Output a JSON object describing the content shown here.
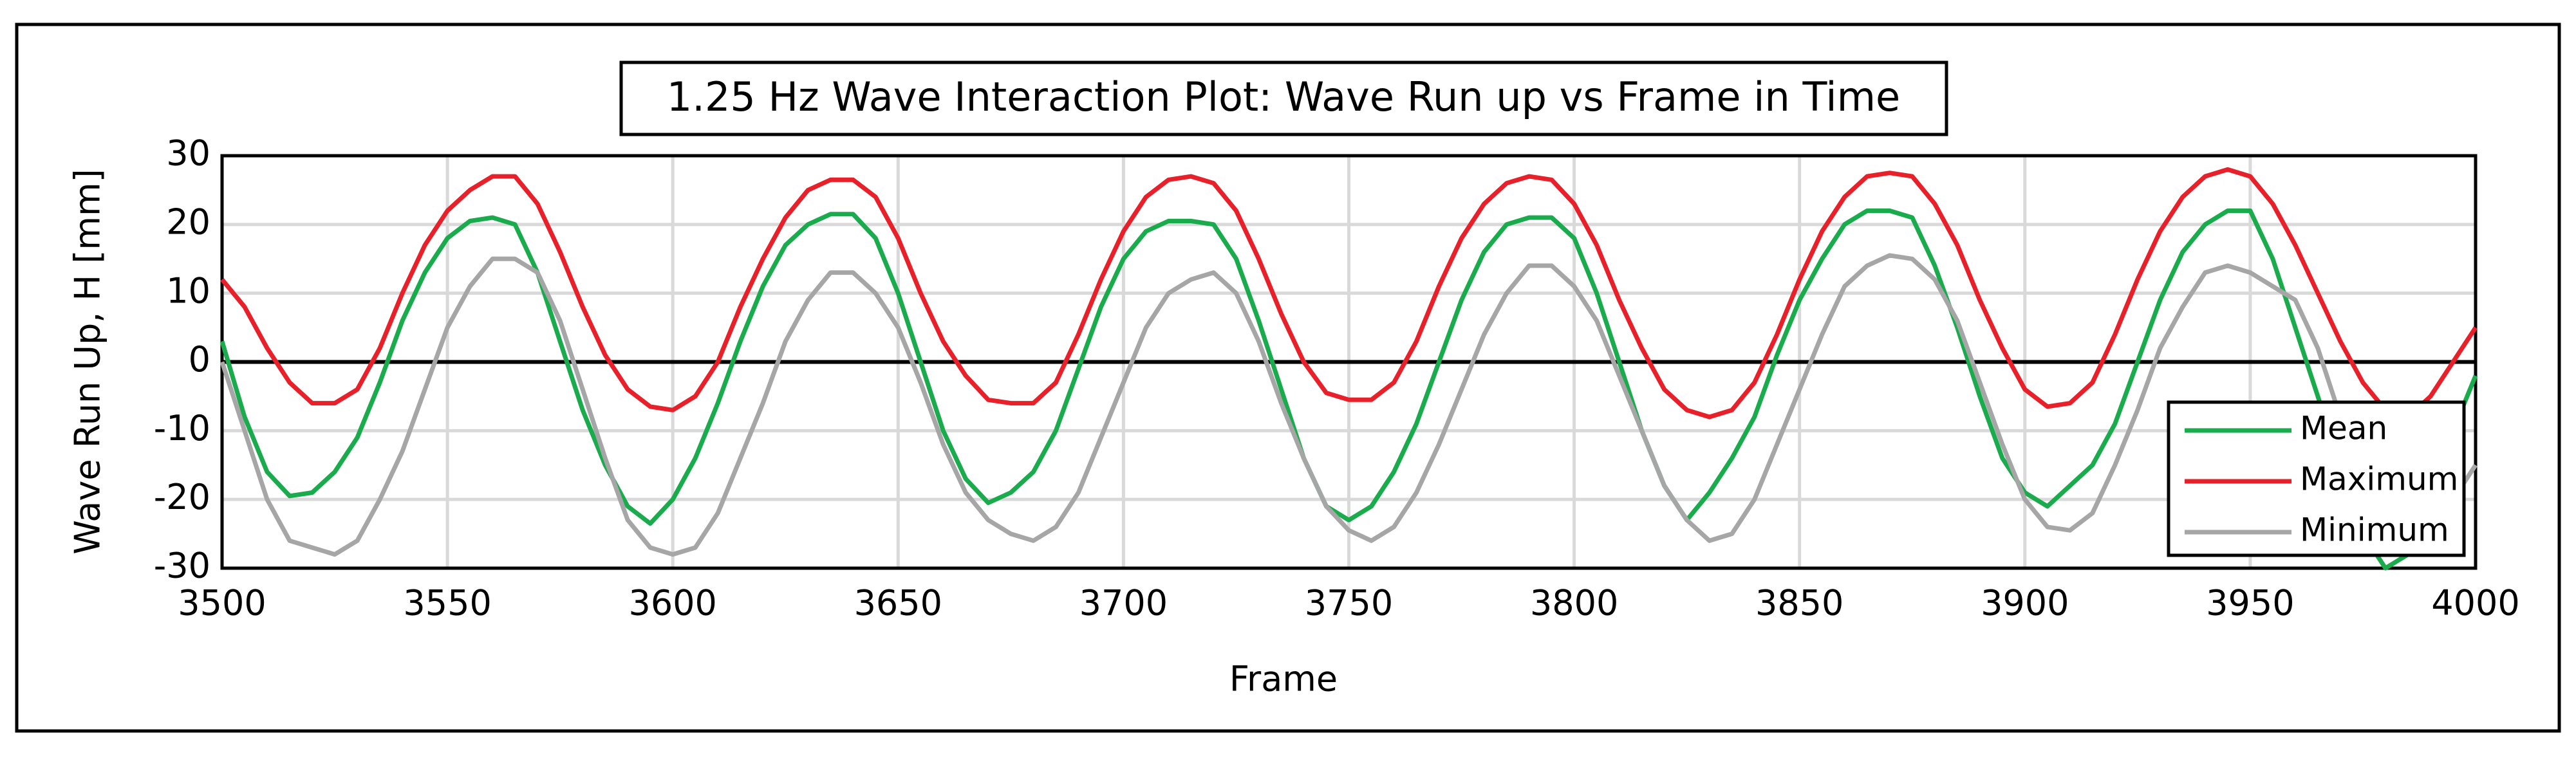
{
  "chart_data": {
    "type": "line",
    "title": "1.25 Hz Wave Interaction Plot: Wave Run up vs Frame in Time",
    "xlabel": "Frame",
    "ylabel": "Wave Run Up, H  [mm]",
    "x": [
      3500,
      3505,
      3510,
      3515,
      3520,
      3525,
      3530,
      3535,
      3540,
      3545,
      3550,
      3555,
      3560,
      3565,
      3570,
      3575,
      3580,
      3585,
      3590,
      3595,
      3600,
      3605,
      3610,
      3615,
      3620,
      3625,
      3630,
      3635,
      3640,
      3645,
      3650,
      3655,
      3660,
      3665,
      3670,
      3675,
      3680,
      3685,
      3690,
      3695,
      3700,
      3705,
      3710,
      3715,
      3720,
      3725,
      3730,
      3735,
      3740,
      3745,
      3750,
      3755,
      3760,
      3765,
      3770,
      3775,
      3780,
      3785,
      3790,
      3795,
      3800,
      3805,
      3810,
      3815,
      3820,
      3825,
      3830,
      3835,
      3840,
      3845,
      3850,
      3855,
      3860,
      3865,
      3870,
      3875,
      3880,
      3885,
      3890,
      3895,
      3900,
      3905,
      3910,
      3915,
      3920,
      3925,
      3930,
      3935,
      3940,
      3945,
      3950,
      3955,
      3960,
      3965,
      3970,
      3975,
      3980,
      3985,
      3990,
      3995,
      4000
    ],
    "series": [
      {
        "name": "Mean",
        "color": "#1aab4c",
        "values": [
          3,
          -8,
          -16,
          -19.5,
          -19,
          -16,
          -11,
          -3,
          6,
          13,
          18,
          20.5,
          21,
          20,
          13,
          3,
          -7,
          -15,
          -21,
          -23.5,
          -20,
          -14,
          -6,
          3,
          11,
          17,
          20,
          21.5,
          21.5,
          18,
          10,
          0,
          -10,
          -17,
          -20.5,
          -19,
          -16,
          -10,
          -1,
          8,
          15,
          19,
          20.5,
          20.5,
          20,
          15,
          6,
          -4,
          -14,
          -21,
          -23,
          -21,
          -16,
          -9,
          0,
          9,
          16,
          20,
          21,
          21,
          18,
          10,
          0,
          -10,
          -18,
          -23,
          -19,
          -14,
          -8,
          1,
          9,
          15,
          20,
          22,
          22,
          21,
          14,
          5,
          -5,
          -14,
          -19,
          -21,
          -18,
          -15,
          -9,
          0,
          9,
          16,
          20,
          22,
          22,
          15,
          5,
          -5,
          -15,
          -25,
          -30,
          -28,
          -18,
          -10,
          -2
        ]
      },
      {
        "name": "Maximum",
        "color": "#e8202a",
        "values": [
          12,
          8,
          2,
          -3,
          -6,
          -6,
          -4,
          2,
          10,
          17,
          22,
          25,
          27,
          27,
          23,
          16,
          8,
          1,
          -4,
          -6.5,
          -7,
          -5,
          0,
          8,
          15,
          21,
          25,
          26.5,
          26.5,
          24,
          18,
          10,
          3,
          -2,
          -5.5,
          -6,
          -6,
          -3,
          4,
          12,
          19,
          24,
          26.5,
          27,
          26,
          22,
          15,
          7,
          0,
          -4.5,
          -5.5,
          -5.5,
          -3,
          3,
          11,
          18,
          23,
          26,
          27,
          26.5,
          23,
          17,
          9,
          2,
          -4,
          -7,
          -8,
          -7,
          -3,
          4,
          12,
          19,
          24,
          27,
          27.5,
          27,
          23,
          17,
          9,
          2,
          -4,
          -6.5,
          -6,
          -3,
          4,
          12,
          19,
          24,
          27,
          28,
          27,
          23,
          17,
          10,
          3,
          -3,
          -7,
          -8,
          -5,
          0,
          5
        ]
      },
      {
        "name": "Minimum",
        "color": "#a6a6a6",
        "values": [
          0,
          -10,
          -20,
          -26,
          -27,
          -28,
          -26,
          -20,
          -13,
          -4,
          5,
          11,
          15,
          15,
          13,
          6,
          -4,
          -14,
          -23,
          -27,
          -28,
          -27,
          -22,
          -14,
          -6,
          3,
          9,
          13,
          13,
          10,
          5,
          -3,
          -12,
          -19,
          -23,
          -25,
          -26,
          -24,
          -19,
          -11,
          -3,
          5,
          10,
          12,
          13,
          10,
          3,
          -6,
          -14,
          -21,
          -24.5,
          -26,
          -24,
          -19,
          -12,
          -4,
          4,
          10,
          14,
          14,
          11,
          6,
          -2,
          -10,
          -18,
          -23,
          -26,
          -25,
          -20,
          -12,
          -4,
          4,
          11,
          14,
          15.5,
          15,
          12,
          6,
          -3,
          -12,
          -20,
          -24,
          -24.5,
          -22,
          -15,
          -7,
          2,
          8,
          13,
          14,
          13,
          11,
          9,
          2,
          -8,
          -18,
          -25,
          -27,
          -24,
          -20,
          -15
        ]
      }
    ],
    "xlim": [
      3500,
      4000
    ],
    "xticks": [
      3500,
      3550,
      3600,
      3650,
      3700,
      3750,
      3800,
      3850,
      3900,
      3950,
      4000
    ],
    "ylim": [
      -30,
      30
    ],
    "yticks": [
      -30,
      -20,
      -10,
      0,
      10,
      20,
      30
    ],
    "grid": true,
    "legend": "lower right"
  }
}
